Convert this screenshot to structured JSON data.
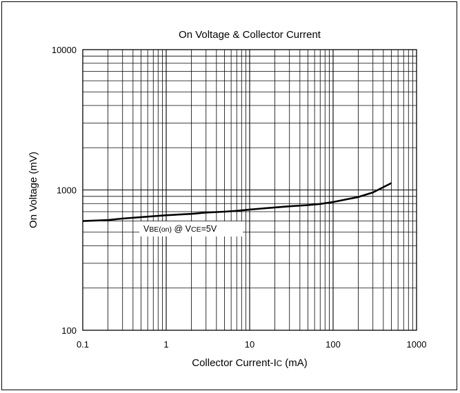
{
  "chart_data": {
    "type": "line",
    "title": "On Voltage & Collector Current",
    "xlabel": {
      "main": "Collector Current-I",
      "sub": "C",
      "unit": " (mA)"
    },
    "ylabel": "On Voltage (mV)",
    "x_scale": "log",
    "y_scale": "log",
    "xlim": [
      0.1,
      1000
    ],
    "ylim": [
      100,
      10000
    ],
    "x_ticks": [
      0.1,
      1,
      10,
      100,
      1000
    ],
    "x_tick_labels": [
      "0.1",
      "1",
      "10",
      "100",
      "1000"
    ],
    "y_ticks": [
      100,
      1000,
      10000
    ],
    "y_tick_labels": [
      "100",
      "1000",
      "10000"
    ],
    "grid": true,
    "series": [
      {
        "name_parts": {
          "v": "V",
          "sub1": "BE(on)",
          "at": " @ V",
          "sub2": "CE",
          "tail": "=5V"
        },
        "color": "#000000",
        "x": [
          0.1,
          0.2,
          0.3,
          0.5,
          1,
          2,
          3,
          5,
          7,
          10,
          20,
          30,
          50,
          70,
          100,
          200,
          300,
          500
        ],
        "y": [
          600,
          610,
          625,
          640,
          660,
          675,
          690,
          700,
          710,
          725,
          750,
          765,
          780,
          795,
          820,
          890,
          960,
          1120
        ]
      }
    ]
  }
}
